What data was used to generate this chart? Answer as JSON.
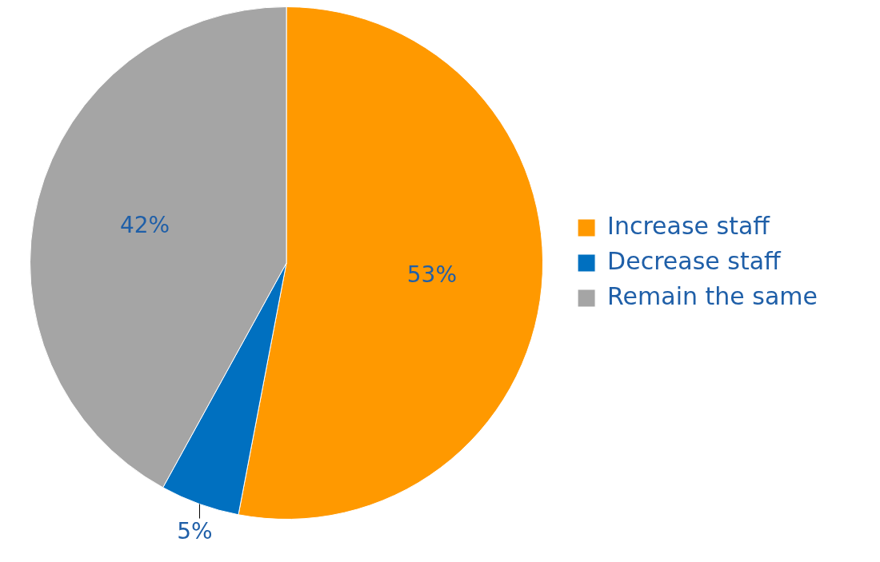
{
  "chart_data": {
    "type": "pie",
    "categories": [
      "Increase staff",
      "Decrease staff",
      "Remain the same"
    ],
    "values": [
      53,
      5,
      42
    ],
    "colors": [
      "#ff9900",
      "#0070c0",
      "#a5a5a5"
    ],
    "value_labels": [
      "53%",
      "5%",
      "42%"
    ],
    "legend": "right"
  }
}
